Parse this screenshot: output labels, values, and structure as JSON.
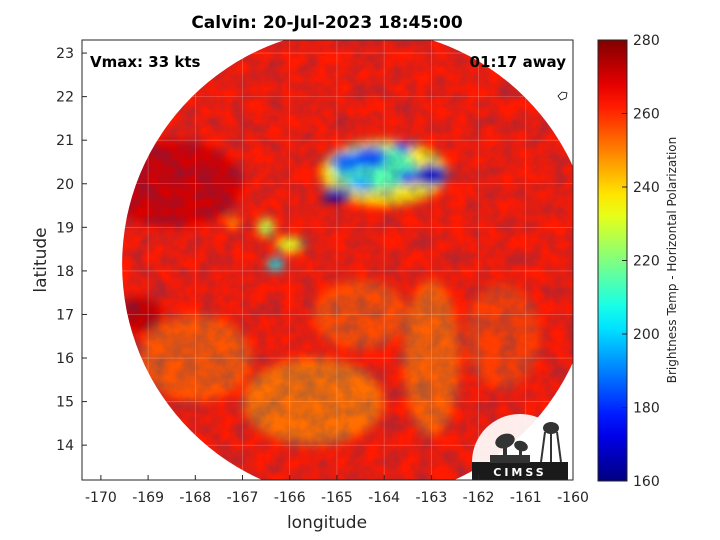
{
  "chart_data": {
    "type": "heatmap",
    "title": "Calvin: 20-Jul-2023 18:45:00",
    "xlabel": "longitude",
    "ylabel": "latitude",
    "xlim": [
      -170.4,
      -160
    ],
    "ylim": [
      13.2,
      23.3
    ],
    "x_ticks": [
      -170,
      -169,
      -168,
      -167,
      -166,
      -165,
      -164,
      -163,
      -162,
      -161,
      -160
    ],
    "y_ticks": [
      14,
      15,
      16,
      17,
      18,
      19,
      20,
      21,
      22,
      23
    ],
    "grid": true,
    "annotations": {
      "left": "Vmax: 33 kts",
      "right": "01:17 away"
    },
    "colorbar": {
      "label": "Brightness Temp - Horizontal Polarization",
      "min": 160,
      "max": 280,
      "ticks": [
        160,
        180,
        200,
        220,
        240,
        260,
        280
      ],
      "colormap": "jet"
    },
    "swath": {
      "center": [
        -164.55,
        18.15
      ],
      "radius_deg": 5.0
    },
    "background_tb": 262,
    "features": [
      {
        "lon": -164.0,
        "lat": 20.25,
        "rx": 1.35,
        "ry": 0.75,
        "tb": 238
      },
      {
        "lon": -164.2,
        "lat": 20.35,
        "rx": 0.9,
        "ry": 0.5,
        "tb": 215
      },
      {
        "lon": -164.8,
        "lat": 20.5,
        "rx": 0.3,
        "ry": 0.25,
        "tb": 188
      },
      {
        "lon": -164.3,
        "lat": 20.6,
        "rx": 0.35,
        "ry": 0.25,
        "tb": 185
      },
      {
        "lon": -163.6,
        "lat": 20.85,
        "rx": 0.2,
        "ry": 0.12,
        "tb": 178
      },
      {
        "lon": -163.0,
        "lat": 20.2,
        "rx": 0.35,
        "ry": 0.25,
        "tb": 168
      },
      {
        "lon": -163.5,
        "lat": 20.15,
        "rx": 0.2,
        "ry": 0.15,
        "tb": 180
      },
      {
        "lon": -164.5,
        "lat": 20.0,
        "rx": 0.25,
        "ry": 0.18,
        "tb": 195
      },
      {
        "lon": -165.0,
        "lat": 19.75,
        "rx": 0.3,
        "ry": 0.17,
        "tb": 166
      },
      {
        "lon": -166.5,
        "lat": 19.0,
        "rx": 0.18,
        "ry": 0.22,
        "tb": 228
      },
      {
        "lon": -166.0,
        "lat": 18.6,
        "rx": 0.3,
        "ry": 0.18,
        "tb": 232
      },
      {
        "lon": -166.3,
        "lat": 18.15,
        "rx": 0.18,
        "ry": 0.14,
        "tb": 205
      },
      {
        "lon": -167.2,
        "lat": 19.1,
        "rx": 0.12,
        "ry": 0.1,
        "tb": 240
      },
      {
        "lon": -168.5,
        "lat": 20.0,
        "rx": 1.5,
        "ry": 1.0,
        "tb": 270
      },
      {
        "lon": -169.2,
        "lat": 17.0,
        "rx": 0.5,
        "ry": 0.4,
        "tb": 272
      },
      {
        "lon": -163.0,
        "lat": 16.0,
        "rx": 0.6,
        "ry": 1.8,
        "tb": 254
      },
      {
        "lon": -161.5,
        "lat": 16.5,
        "rx": 0.8,
        "ry": 1.2,
        "tb": 258
      },
      {
        "lon": -165.5,
        "lat": 15.0,
        "rx": 1.5,
        "ry": 1.0,
        "tb": 252
      },
      {
        "lon": -168.0,
        "lat": 16.0,
        "rx": 1.2,
        "ry": 1.0,
        "tb": 255
      },
      {
        "lon": -164.5,
        "lat": 17.0,
        "rx": 1.0,
        "ry": 0.8,
        "tb": 256
      }
    ]
  },
  "logo": {
    "text": "CIMSS"
  }
}
